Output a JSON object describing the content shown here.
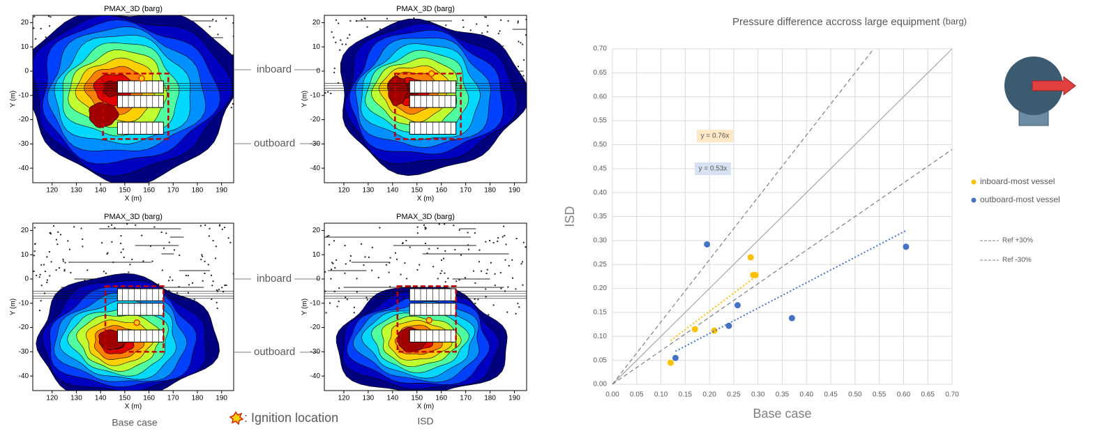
{
  "chart_data": [
    {
      "type": "contour",
      "title": "PMAX_3D (barg)",
      "xlabel": "X (m)",
      "ylabel": "Y (m)",
      "xlim": [
        112,
        195
      ],
      "ylim": [
        -46,
        23
      ],
      "xticks": [
        120,
        130,
        140,
        150,
        160,
        170,
        180,
        190
      ],
      "yticks": [
        20,
        10,
        0,
        -10,
        -20,
        -30,
        -40
      ]
    },
    {
      "type": "contour",
      "title": "PMAX_3D (barg)",
      "xlabel": "X (m)",
      "ylabel": "Y (m)",
      "xlim": [
        112,
        195
      ],
      "ylim": [
        -46,
        23
      ],
      "xticks": [
        120,
        130,
        140,
        150,
        160,
        170,
        180,
        190
      ],
      "yticks": [
        20,
        10,
        0,
        -10,
        -20,
        -30,
        -40
      ]
    },
    {
      "type": "contour",
      "title": "PMAX_3D (barg)",
      "xlabel": "X (m)",
      "ylabel": "Y (m)",
      "xlim": [
        112,
        195
      ],
      "ylim": [
        -46,
        23
      ],
      "xticks": [
        120,
        130,
        140,
        150,
        160,
        170,
        180,
        190
      ],
      "yticks": [
        20,
        10,
        0,
        -10,
        -20,
        -30,
        -40
      ]
    },
    {
      "type": "contour",
      "title": "PMAX_3D (barg)",
      "xlabel": "X (m)",
      "ylabel": "Y (m)",
      "xlim": [
        112,
        195
      ],
      "ylim": [
        -46,
        23
      ],
      "xticks": [
        120,
        130,
        140,
        150,
        160,
        170,
        180,
        190
      ],
      "yticks": [
        20,
        10,
        0,
        -10,
        -20,
        -30,
        -40
      ]
    },
    {
      "type": "scatter",
      "title": "Pressure difference accross large equipment",
      "title_unit": "(barg)",
      "xlabel": "Base case",
      "ylabel": "ISD",
      "xlim": [
        0,
        0.7
      ],
      "ylim": [
        0,
        0.7
      ],
      "grid": true,
      "legend": "right",
      "xticks": [
        {
          "value": 0,
          "label": "0.00"
        },
        {
          "value": 0.05,
          "label": "0.05"
        },
        {
          "value": 0.1,
          "label": "0.10"
        },
        {
          "value": 0.15,
          "label": "0.15"
        },
        {
          "value": 0.2,
          "label": "0.20"
        },
        {
          "value": 0.25,
          "label": "0.25"
        },
        {
          "value": 0.3,
          "label": "0.30"
        },
        {
          "value": 0.35,
          "label": "0.35"
        },
        {
          "value": 0.4,
          "label": "0.40"
        },
        {
          "value": 0.45,
          "label": "0.45"
        },
        {
          "value": 0.5,
          "label": "0.50"
        },
        {
          "value": 0.55,
          "label": "0.55"
        },
        {
          "value": 0.6,
          "label": "0.60"
        },
        {
          "value": 0.65,
          "label": "0.65"
        },
        {
          "value": 0.7,
          "label": "0.70"
        }
      ],
      "yticks": [
        {
          "value": 0,
          "label": "0.00"
        },
        {
          "value": 0.05,
          "label": "0.05"
        },
        {
          "value": 0.1,
          "label": "0.10"
        },
        {
          "value": 0.15,
          "label": "0.15"
        },
        {
          "value": 0.2,
          "label": "0.20"
        },
        {
          "value": 0.25,
          "label": "0.25"
        },
        {
          "value": 0.3,
          "label": "0.30"
        },
        {
          "value": 0.35,
          "label": "0.35"
        },
        {
          "value": 0.4,
          "label": "0.40"
        },
        {
          "value": 0.45,
          "label": "0.45"
        },
        {
          "value": 0.5,
          "label": "0.50"
        },
        {
          "value": 0.55,
          "label": "0.55"
        },
        {
          "value": 0.6,
          "label": "0.60"
        },
        {
          "value": 0.65,
          "label": "0.65"
        },
        {
          "value": 0.7,
          "label": "0.70"
        }
      ],
      "series": [
        {
          "name": "inboard-most vessel",
          "color": "#ffc000",
          "x": [
            0.12,
            0.17,
            0.21,
            0.285,
            0.29,
            0.295
          ],
          "values": [
            0.045,
            0.115,
            0.112,
            0.265,
            0.228,
            0.228
          ],
          "trendline": {
            "label": "y = 0.76x",
            "slope": 0.76
          }
        },
        {
          "name": "outboard-most vessel",
          "color": "#4472c4",
          "x": [
            0.13,
            0.195,
            0.24,
            0.258,
            0.37,
            0.605
          ],
          "values": [
            0.055,
            0.292,
            0.122,
            0.165,
            0.138,
            0.287
          ],
          "trendline": {
            "label": "y = 0.53x",
            "slope": 0.53
          }
        }
      ],
      "reference_lines": [
        {
          "slope": 1,
          "color": "#a6a6a6",
          "dashed": false
        },
        {
          "name": "Ref +30%",
          "slope": 1.3,
          "color": "#7f7f7f",
          "dashed": true
        },
        {
          "name": "Ref -30%",
          "slope": 0.7,
          "color": "#7f7f7f",
          "dashed": true
        }
      ]
    }
  ],
  "annotations": [
    "inboard",
    "outboard",
    "inboard",
    "outboard",
    "Base case",
    ": Ignition location",
    "ISD"
  ]
}
